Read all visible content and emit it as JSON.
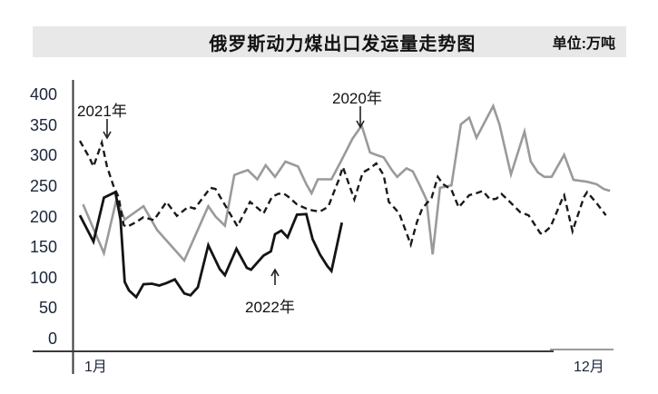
{
  "header": {
    "title": "俄罗斯动力煤出口发运量走势图",
    "unit_label": "单位:万吨",
    "band_color": "#e8e8e8"
  },
  "axes": {
    "y_ticks": [
      400,
      350,
      300,
      250,
      200,
      150,
      100,
      50,
      0
    ],
    "x_start_label": "1月",
    "x_end_label": "12月"
  },
  "annotations": [
    {
      "id": "2021",
      "label": "2021年",
      "arrow": "down"
    },
    {
      "id": "2020",
      "label": "2020年",
      "arrow": "down"
    },
    {
      "id": "2022",
      "label": "2022年",
      "arrow": "up"
    }
  ],
  "chart_data": {
    "type": "line",
    "title": "俄罗斯动力煤出口发运量走势图",
    "unit": "万吨",
    "ylim": [
      0,
      400
    ],
    "y_step": 50,
    "grid": false,
    "legend": "inline-annotations",
    "x_axis": {
      "start_label": "1月",
      "end_label": "12月",
      "x_unit": "week-of-year",
      "x_range": [
        0,
        51
      ]
    },
    "series": [
      {
        "name": "2020年",
        "color": "#9a9a9a",
        "dash": "solid",
        "width": 2.6,
        "points": [
          [
            0.3,
            220
          ],
          [
            2.3,
            140
          ],
          [
            3.5,
            228
          ],
          [
            4.3,
            195
          ],
          [
            6.1,
            217
          ],
          [
            7.4,
            178
          ],
          [
            10.0,
            128
          ],
          [
            12.3,
            217
          ],
          [
            13.0,
            200
          ],
          [
            13.9,
            185
          ],
          [
            14.8,
            268
          ],
          [
            15.4,
            272
          ],
          [
            16.1,
            276
          ],
          [
            17.0,
            261
          ],
          [
            17.8,
            284
          ],
          [
            18.7,
            265
          ],
          [
            19.7,
            290
          ],
          [
            20.9,
            282
          ],
          [
            21.7,
            253
          ],
          [
            22.2,
            238
          ],
          [
            22.8,
            261
          ],
          [
            24.1,
            261
          ],
          [
            25.0,
            290
          ],
          [
            26.1,
            327
          ],
          [
            27.0,
            349
          ],
          [
            27.8,
            305
          ],
          [
            28.4,
            301
          ],
          [
            29.1,
            297
          ],
          [
            29.9,
            276
          ],
          [
            30.4,
            265
          ],
          [
            31.3,
            279
          ],
          [
            31.9,
            274
          ],
          [
            32.6,
            250
          ],
          [
            33.2,
            228
          ],
          [
            33.8,
            138
          ],
          [
            34.5,
            247
          ],
          [
            35.6,
            251
          ],
          [
            36.5,
            351
          ],
          [
            37.3,
            362
          ],
          [
            38.0,
            329
          ],
          [
            39.6,
            381
          ],
          [
            40.2,
            351
          ],
          [
            41.3,
            269
          ],
          [
            42.6,
            339
          ],
          [
            43.2,
            290
          ],
          [
            43.9,
            272
          ],
          [
            44.5,
            265
          ],
          [
            45.2,
            265
          ],
          [
            46.4,
            301
          ],
          [
            47.3,
            260
          ],
          [
            48.6,
            257
          ],
          [
            49.5,
            253
          ],
          [
            50.2,
            245
          ],
          [
            50.8,
            242
          ]
        ]
      },
      {
        "name": "2021年",
        "color": "#1a1a1a",
        "dash": "dashed",
        "width": 2.4,
        "points": [
          [
            0.0,
            324
          ],
          [
            0.9,
            297
          ],
          [
            1.3,
            282
          ],
          [
            2.1,
            321
          ],
          [
            2.6,
            282
          ],
          [
            3.2,
            251
          ],
          [
            3.7,
            232
          ],
          [
            4.2,
            186
          ],
          [
            4.5,
            183
          ],
          [
            5.4,
            191
          ],
          [
            6.1,
            199
          ],
          [
            7.1,
            194
          ],
          [
            8.3,
            224
          ],
          [
            9.3,
            201
          ],
          [
            10.4,
            216
          ],
          [
            11.0,
            213
          ],
          [
            12.5,
            247
          ],
          [
            13.0,
            245
          ],
          [
            14.1,
            213
          ],
          [
            15.1,
            184
          ],
          [
            16.3,
            224
          ],
          [
            17.1,
            213
          ],
          [
            17.6,
            205
          ],
          [
            18.4,
            232
          ],
          [
            19.0,
            237
          ],
          [
            19.5,
            238
          ],
          [
            20.0,
            232
          ],
          [
            20.8,
            220
          ],
          [
            21.7,
            213
          ],
          [
            22.3,
            210
          ],
          [
            23.0,
            208
          ],
          [
            23.8,
            216
          ],
          [
            24.3,
            238
          ],
          [
            24.8,
            260
          ],
          [
            25.2,
            281
          ],
          [
            26.3,
            228
          ],
          [
            27.1,
            272
          ],
          [
            27.8,
            279
          ],
          [
            28.4,
            287
          ],
          [
            29.1,
            268
          ],
          [
            29.6,
            224
          ],
          [
            30.2,
            213
          ],
          [
            30.6,
            205
          ],
          [
            31.7,
            154
          ],
          [
            32.3,
            191
          ],
          [
            32.8,
            213
          ],
          [
            33.7,
            231
          ],
          [
            34.3,
            265
          ],
          [
            34.8,
            253
          ],
          [
            35.6,
            244
          ],
          [
            36.3,
            215
          ],
          [
            37.3,
            235
          ],
          [
            37.8,
            237
          ],
          [
            38.6,
            242
          ],
          [
            39.3,
            228
          ],
          [
            39.9,
            229
          ],
          [
            40.4,
            237
          ],
          [
            41.2,
            224
          ],
          [
            42.2,
            207
          ],
          [
            43.0,
            202
          ],
          [
            44.1,
            173
          ],
          [
            44.3,
            171
          ],
          [
            45.1,
            183
          ],
          [
            46.3,
            232
          ],
          [
            46.4,
            235
          ],
          [
            47.2,
            176
          ],
          [
            48.3,
            232
          ],
          [
            48.6,
            240
          ],
          [
            49.5,
            222
          ],
          [
            50.4,
            202
          ]
        ]
      },
      {
        "name": "2022年",
        "color": "#141414",
        "dash": "solid",
        "width": 2.8,
        "points": [
          [
            0.0,
            202
          ],
          [
            1.3,
            159
          ],
          [
            2.3,
            231
          ],
          [
            3.4,
            240
          ],
          [
            3.9,
            195
          ],
          [
            4.3,
            93
          ],
          [
            4.7,
            79
          ],
          [
            5.4,
            68
          ],
          [
            6.1,
            89
          ],
          [
            6.9,
            90
          ],
          [
            7.6,
            87
          ],
          [
            8.3,
            91
          ],
          [
            9.1,
            97
          ],
          [
            10.0,
            74
          ],
          [
            10.6,
            71
          ],
          [
            11.3,
            84
          ],
          [
            12.3,
            153
          ],
          [
            13.4,
            114
          ],
          [
            13.9,
            104
          ],
          [
            15.0,
            147
          ],
          [
            16.0,
            116
          ],
          [
            16.4,
            113
          ],
          [
            17.6,
            136
          ],
          [
            18.3,
            143
          ],
          [
            18.7,
            171
          ],
          [
            19.3,
            177
          ],
          [
            19.9,
            166
          ],
          [
            20.8,
            203
          ],
          [
            21.7,
            204
          ],
          [
            22.3,
            163
          ],
          [
            23.0,
            138
          ],
          [
            23.7,
            119
          ],
          [
            24.1,
            111
          ],
          [
            25.1,
            190
          ]
        ]
      }
    ]
  }
}
